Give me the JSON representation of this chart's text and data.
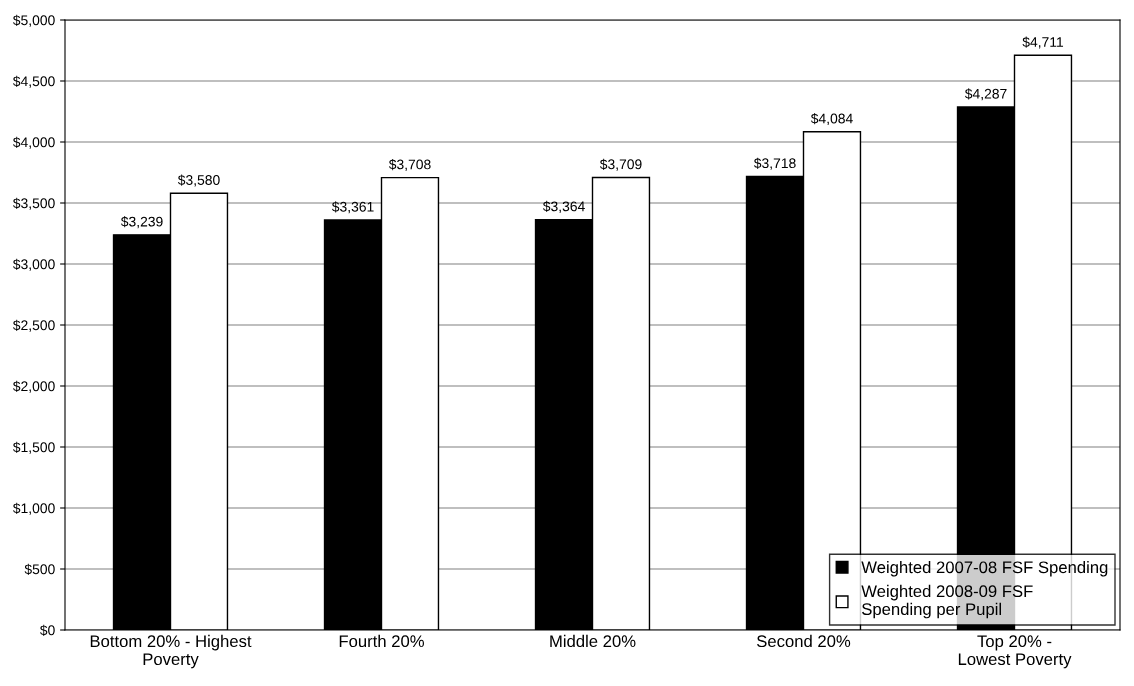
{
  "chart_data": {
    "type": "bar",
    "categories": [
      "Bottom 20% - Highest\nPoverty",
      "Fourth 20%",
      "Middle 20%",
      "Second 20%",
      "Top 20% -\nLowest Poverty"
    ],
    "series": [
      {
        "name": "Weighted 2007-08 FSF Spending",
        "color": "#000000",
        "values": [
          3239,
          3361,
          3364,
          3718,
          4287
        ],
        "value_labels": [
          "$3,239",
          "$3,361",
          "$3,364",
          "$3,718",
          "$4,287"
        ]
      },
      {
        "name": "Weighted 2008-09 FSF\nSpending per Pupil",
        "color": "#ffffff",
        "values": [
          3580,
          3708,
          3709,
          4084,
          4711
        ],
        "value_labels": [
          "$3,580",
          "$3,708",
          "$3,709",
          "$4,084",
          "$4,711"
        ]
      }
    ],
    "ylim": [
      0,
      5000
    ],
    "yticks": [
      {
        "value": 0,
        "label": "$0"
      },
      {
        "value": 500,
        "label": "$500"
      },
      {
        "value": 1000,
        "label": "$1,000"
      },
      {
        "value": 1500,
        "label": "$1,500"
      },
      {
        "value": 2000,
        "label": "$2,000"
      },
      {
        "value": 2500,
        "label": "$2,500"
      },
      {
        "value": 3000,
        "label": "$3,000"
      },
      {
        "value": 3500,
        "label": "$3,500"
      },
      {
        "value": 4000,
        "label": "$4,000"
      },
      {
        "value": 4500,
        "label": "$4,500"
      },
      {
        "value": 5000,
        "label": "$5,000"
      }
    ],
    "grid": "y",
    "legend": "bottom right"
  }
}
